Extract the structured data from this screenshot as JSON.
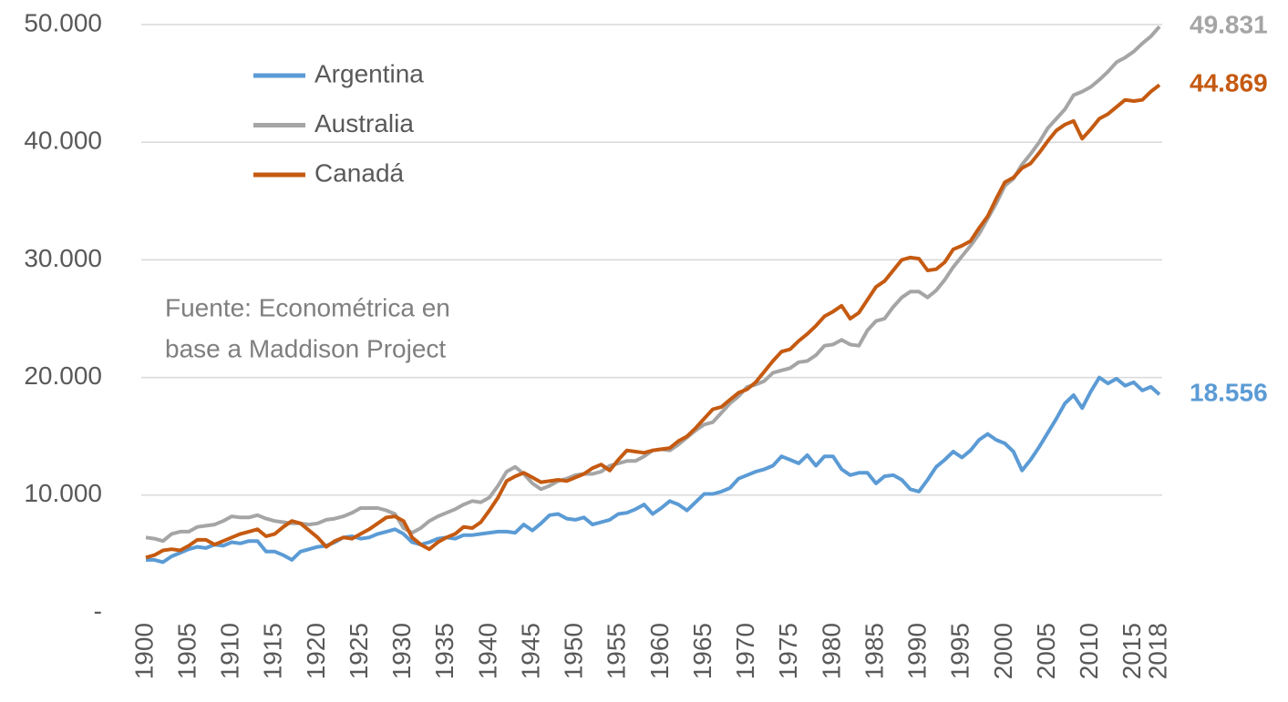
{
  "chart_data": {
    "type": "line",
    "annotation": [
      "Fuente: Econométrica en",
      "base a Maddison Project"
    ],
    "x": [
      1900,
      1901,
      1902,
      1903,
      1904,
      1905,
      1906,
      1907,
      1908,
      1909,
      1910,
      1911,
      1912,
      1913,
      1914,
      1915,
      1916,
      1917,
      1918,
      1919,
      1920,
      1921,
      1922,
      1923,
      1924,
      1925,
      1926,
      1927,
      1928,
      1929,
      1930,
      1931,
      1932,
      1933,
      1934,
      1935,
      1936,
      1937,
      1938,
      1939,
      1940,
      1941,
      1942,
      1943,
      1944,
      1945,
      1946,
      1947,
      1948,
      1949,
      1950,
      1951,
      1952,
      1953,
      1954,
      1955,
      1956,
      1957,
      1958,
      1959,
      1960,
      1961,
      1962,
      1963,
      1964,
      1965,
      1966,
      1967,
      1968,
      1969,
      1970,
      1971,
      1972,
      1973,
      1974,
      1975,
      1976,
      1977,
      1978,
      1979,
      1980,
      1981,
      1982,
      1983,
      1984,
      1985,
      1986,
      1987,
      1988,
      1989,
      1990,
      1991,
      1992,
      1993,
      1994,
      1995,
      1996,
      1997,
      1998,
      1999,
      2000,
      2001,
      2002,
      2003,
      2004,
      2005,
      2006,
      2007,
      2008,
      2009,
      2010,
      2011,
      2012,
      2013,
      2014,
      2015,
      2016,
      2017,
      2018
    ],
    "series": [
      {
        "name": "Argentina",
        "color": "#5b9bd5",
        "values": [
          4500,
          4500,
          4300,
          4800,
          5100,
          5400,
          5600,
          5500,
          5800,
          5700,
          6000,
          5900,
          6100,
          6100,
          5200,
          5200,
          4900,
          4500,
          5200,
          5400,
          5600,
          5700,
          6000,
          6400,
          6500,
          6300,
          6400,
          6700,
          6900,
          7100,
          6700,
          6000,
          5800,
          6000,
          6300,
          6400,
          6300,
          6600,
          6600,
          6700,
          6800,
          6900,
          6900,
          6800,
          7500,
          7000,
          7600,
          8300,
          8400,
          8000,
          7900,
          8100,
          7500,
          7700,
          7900,
          8400,
          8500,
          8800,
          9200,
          8400,
          8900,
          9500,
          9200,
          8700,
          9400,
          10100,
          10100,
          10300,
          10600,
          11400,
          11700,
          12000,
          12200,
          12500,
          13300,
          13000,
          12700,
          13400,
          12500,
          13300,
          13300,
          12200,
          11700,
          11900,
          11900,
          11000,
          11600,
          11700,
          11300,
          10500,
          10300,
          11300,
          12400,
          13000,
          13700,
          13200,
          13800,
          14700,
          15200,
          14700,
          14400,
          13700,
          12100,
          13000,
          14100,
          15300,
          16500,
          17800,
          18500,
          17400,
          18800,
          20000,
          19500,
          19900,
          19300,
          19600,
          18900,
          19200,
          18556
        ],
        "value_labels": {
          "118": "18.556"
        }
      },
      {
        "name": "Australia",
        "color": "#a5a5a5",
        "values": [
          6400,
          6300,
          6100,
          6700,
          6900,
          6900,
          7300,
          7400,
          7500,
          7800,
          8200,
          8100,
          8100,
          8300,
          8000,
          7800,
          7700,
          7600,
          7600,
          7500,
          7600,
          7900,
          8000,
          8200,
          8500,
          8900,
          8900,
          8900,
          8700,
          8400,
          7200,
          6800,
          7200,
          7800,
          8200,
          8500,
          8800,
          9200,
          9500,
          9400,
          9800,
          10800,
          12000,
          12400,
          11800,
          11000,
          10500,
          10800,
          11200,
          11400,
          11700,
          11800,
          11800,
          12000,
          12500,
          12700,
          12900,
          12900,
          13300,
          13800,
          13900,
          13800,
          14300,
          14900,
          15500,
          16000,
          16200,
          17000,
          17800,
          18400,
          19200,
          19400,
          19700,
          20400,
          20600,
          20800,
          21300,
          21400,
          21900,
          22700,
          22800,
          23200,
          22800,
          22700,
          24000,
          24800,
          25000,
          26000,
          26800,
          27300,
          27300,
          26800,
          27400,
          28300,
          29400,
          30300,
          31200,
          32200,
          33500,
          34800,
          36300,
          36900,
          38100,
          39000,
          40000,
          41200,
          42000,
          42800,
          44000,
          44300,
          44700,
          45300,
          46000,
          46800,
          47200,
          47700,
          48400,
          49000,
          49831
        ],
        "value_labels": {
          "118": "49.831"
        }
      },
      {
        "name": "Canadá",
        "color": "#c55a11",
        "values": [
          4700,
          4900,
          5300,
          5400,
          5300,
          5700,
          6200,
          6200,
          5800,
          6100,
          6400,
          6700,
          6900,
          7100,
          6500,
          6700,
          7300,
          7800,
          7600,
          7000,
          6400,
          5600,
          6100,
          6400,
          6300,
          6700,
          7100,
          7600,
          8100,
          8200,
          7800,
          6400,
          5800,
          5400,
          6000,
          6400,
          6700,
          7300,
          7200,
          7700,
          8700,
          9800,
          11200,
          11600,
          11900,
          11500,
          11100,
          11200,
          11300,
          11200,
          11500,
          11800,
          12300,
          12600,
          12100,
          13000,
          13800,
          13700,
          13600,
          13800,
          13900,
          14000,
          14600,
          15000,
          15700,
          16500,
          17300,
          17500,
          18100,
          18700,
          19000,
          19600,
          20500,
          21400,
          22200,
          22400,
          23100,
          23700,
          24400,
          25200,
          25600,
          26100,
          25000,
          25500,
          26600,
          27700,
          28200,
          29100,
          30000,
          30200,
          30100,
          29100,
          29200,
          29800,
          30900,
          31200,
          31600,
          32700,
          33700,
          35200,
          36600,
          37000,
          37800,
          38200,
          39100,
          40100,
          41000,
          41500,
          41800,
          40300,
          41100,
          42000,
          42400,
          43000,
          43600,
          43500,
          43600,
          44300,
          44869
        ],
        "value_labels": {
          "118": "44.869"
        }
      }
    ],
    "xlim": [
      1900,
      2018
    ],
    "xticks": [
      1900,
      1905,
      1910,
      1915,
      1920,
      1925,
      1930,
      1935,
      1940,
      1945,
      1950,
      1955,
      1960,
      1965,
      1970,
      1975,
      1980,
      1985,
      1990,
      1995,
      2000,
      2005,
      2010,
      2015,
      2018
    ],
    "ylim": [
      0,
      50000
    ],
    "yticks": [
      {
        "value": 0,
        "label": "-"
      },
      {
        "value": 10000,
        "label": "10.000"
      },
      {
        "value": 20000,
        "label": "20.000"
      },
      {
        "value": 30000,
        "label": "30.000"
      },
      {
        "value": 40000,
        "label": "40.000"
      },
      {
        "value": 50000,
        "label": "50.000"
      }
    ],
    "grid": true
  }
}
